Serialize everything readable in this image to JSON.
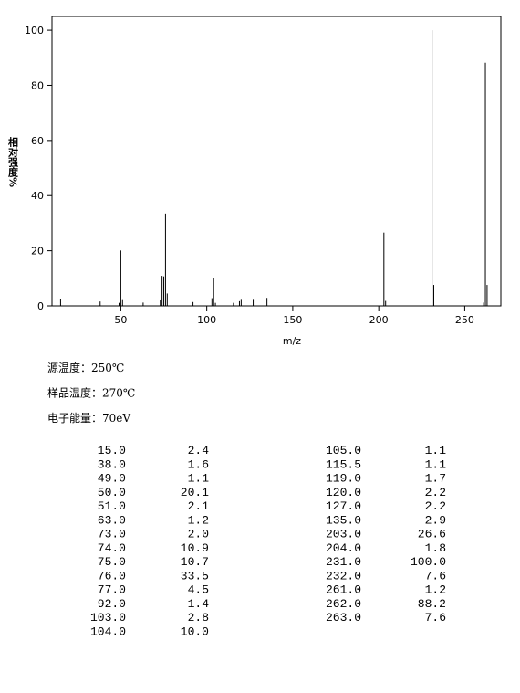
{
  "chart_data": {
    "type": "bar",
    "x_label": "m/z",
    "y_label": "相对强度%",
    "x": [
      15,
      38,
      49,
      50,
      51,
      63,
      73,
      74,
      75,
      76,
      77,
      92,
      103,
      104,
      105,
      115.5,
      119,
      120,
      127,
      135,
      203,
      204,
      231,
      232,
      261,
      262,
      263
    ],
    "values": [
      2.4,
      1.6,
      1.1,
      20.1,
      2.1,
      1.2,
      2.0,
      10.9,
      10.7,
      33.5,
      4.5,
      1.4,
      2.8,
      10.0,
      1.1,
      1.1,
      1.7,
      2.2,
      2.2,
      2.9,
      26.6,
      1.8,
      100.0,
      7.6,
      1.2,
      88.2,
      7.6
    ],
    "color": "#000000",
    "xlim": [
      10,
      271
    ],
    "xticks": [
      50,
      100,
      150,
      200,
      250
    ],
    "ylim": [
      0,
      105
    ],
    "yticks": [
      0,
      20,
      40,
      60,
      80,
      100
    ]
  },
  "conditions": [
    "源温度：250℃",
    "样品温度：270℃",
    "电子能量：70eV"
  ],
  "table": {
    "left": [
      [
        "15.0",
        "2.4"
      ],
      [
        "38.0",
        "1.6"
      ],
      [
        "49.0",
        "1.1"
      ],
      [
        "50.0",
        "20.1"
      ],
      [
        "51.0",
        "2.1"
      ],
      [
        "63.0",
        "1.2"
      ],
      [
        "73.0",
        "2.0"
      ],
      [
        "74.0",
        "10.9"
      ],
      [
        "75.0",
        "10.7"
      ],
      [
        "76.0",
        "33.5"
      ],
      [
        "77.0",
        "4.5"
      ],
      [
        "92.0",
        "1.4"
      ],
      [
        "103.0",
        "2.8"
      ],
      [
        "104.0",
        "10.0"
      ]
    ],
    "right": [
      [
        "105.0",
        "1.1"
      ],
      [
        "115.5",
        "1.1"
      ],
      [
        "119.0",
        "1.7"
      ],
      [
        "120.0",
        "2.2"
      ],
      [
        "127.0",
        "2.2"
      ],
      [
        "135.0",
        "2.9"
      ],
      [
        "203.0",
        "26.6"
      ],
      [
        "204.0",
        "1.8"
      ],
      [
        "231.0",
        "100.0"
      ],
      [
        "232.0",
        "7.6"
      ],
      [
        "261.0",
        "1.2"
      ],
      [
        "262.0",
        "88.2"
      ],
      [
        "263.0",
        "7.6"
      ]
    ]
  }
}
